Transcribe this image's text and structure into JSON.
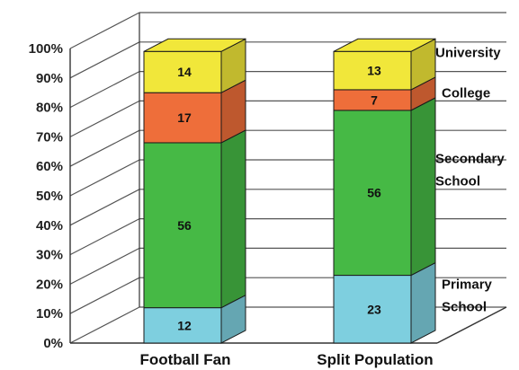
{
  "chart_data": {
    "type": "bar",
    "stacked": true,
    "three_d": true,
    "categories": [
      "Football Fan",
      "Split Population"
    ],
    "series": [
      {
        "name": "Primary School",
        "values": [
          12,
          23
        ],
        "color": "#7ecfdf"
      },
      {
        "name": "Secondary School",
        "values": [
          56,
          56
        ],
        "color": "#46b945"
      },
      {
        "name": "College",
        "values": [
          17,
          7
        ],
        "color": "#ee6e3a"
      },
      {
        "name": "University",
        "values": [
          14,
          13
        ],
        "color": "#f1e73a"
      }
    ],
    "y_ticks": [
      "0%",
      "10%",
      "20%",
      "30%",
      "40%",
      "50%",
      "60%",
      "70%",
      "80%",
      "90%",
      "100%"
    ],
    "ylim": [
      0,
      100
    ],
    "grid": true,
    "legend_position": "right",
    "legend_labels": [
      {
        "series": "University",
        "lines": [
          "University"
        ]
      },
      {
        "series": "College",
        "lines": [
          "College"
        ]
      },
      {
        "series": "Secondary School",
        "lines": [
          "Secondary",
          "School"
        ]
      },
      {
        "series": "Primary School",
        "lines": [
          "Primary",
          "School"
        ]
      }
    ]
  }
}
